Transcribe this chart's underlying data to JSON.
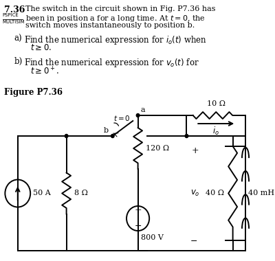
{
  "bg_color": "#ffffff",
  "circuit": {
    "current_source": "50 A",
    "r1": "8 Ω",
    "r2": "120 Ω",
    "r3": "10 Ω",
    "r4": "40 Ω",
    "l1": "40 mH",
    "v1": "800 V",
    "v_label": "$v_o$",
    "i_label": "$i_o$",
    "switch_label": "$t = 0$",
    "node_a": "a",
    "node_b": "b"
  }
}
